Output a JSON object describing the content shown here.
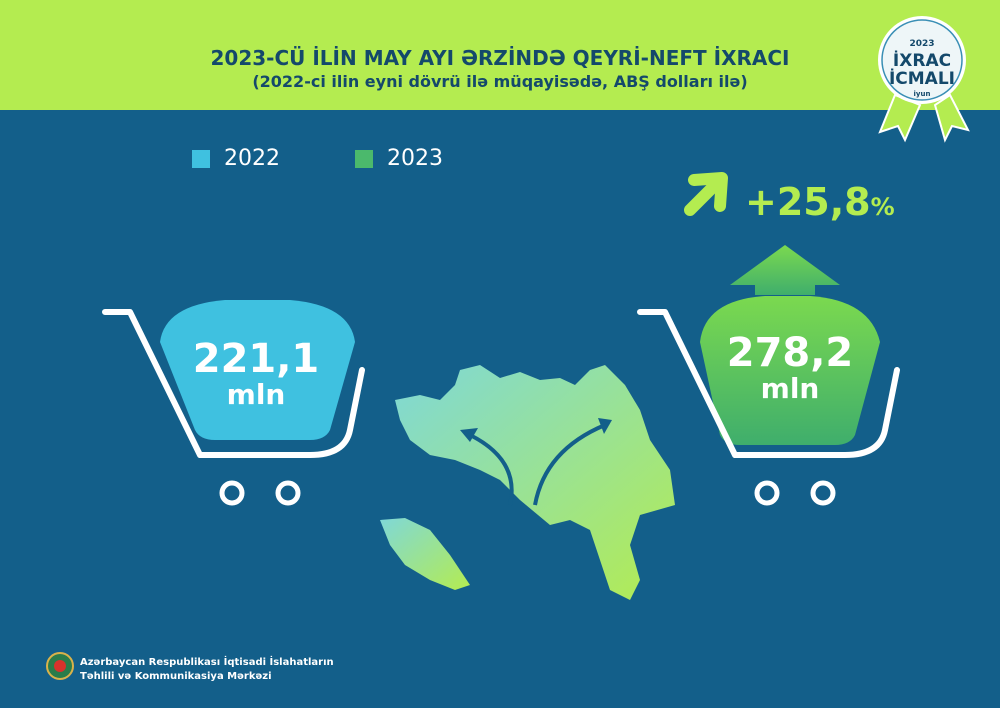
{
  "header": {
    "title": "2023-CÜ İLİN MAY AYI ƏRZİNDƏ QEYRİ-NEFT İXRACI",
    "subtitle": "(2022-ci ilin eyni dövrü ilə müqayisədə, ABŞ dolları ilə)"
  },
  "badge": {
    "year": "2023",
    "line1": "İXRAC",
    "line2": "İCMALI",
    "month": "iyun"
  },
  "legend": [
    {
      "label": "2022",
      "color": "#3fc1e0"
    },
    {
      "label": "2023",
      "color": "#4bb96c"
    }
  ],
  "change": {
    "value": "+25,8",
    "unit": "%",
    "icon": "arrow-up-right-icon"
  },
  "values": [
    {
      "number": "221,1",
      "unit": "mln"
    },
    {
      "number": "278,2",
      "unit": "mln"
    }
  ],
  "chart_data": {
    "type": "bar",
    "categories": [
      "2022",
      "2023"
    ],
    "values": [
      221.1,
      278.2
    ],
    "title": "2023-CÜ İLİN MAY AYI ƏRZİNDƏ QEYRİ-NEFT İXRACI",
    "subtitle": "(2022-ci ilin eyni dövrü ilə müqayisədə, ABŞ dolları ilə)",
    "unit": "mln",
    "change_percent": 25.8,
    "legend": "top-left"
  },
  "footer": {
    "line1": "Azərbaycan Respublikası İqtisadi İslahatların",
    "line2": "Təhlili və Kommunikasiya Mərkəzi"
  },
  "colors": {
    "header_bg": "#b4ec50",
    "background": "#135f8a",
    "accent": "#b4ec50"
  }
}
